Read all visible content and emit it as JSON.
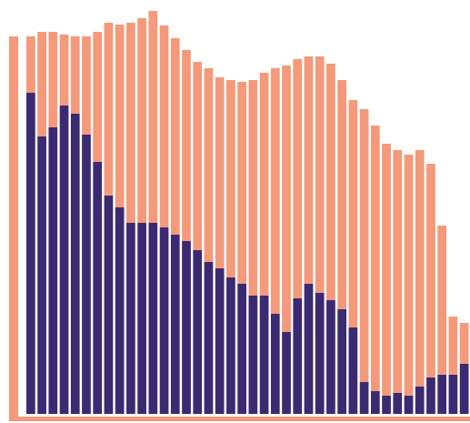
{
  "chart_data": {
    "type": "bar",
    "stacked": true,
    "categories": [
      null,
      null,
      null,
      null,
      null,
      null,
      null,
      null,
      null,
      null,
      null,
      null,
      null,
      null,
      null,
      null,
      null,
      null,
      null,
      null,
      null,
      null,
      null,
      null,
      null,
      null,
      null,
      null,
      null,
      null,
      null,
      null,
      null,
      null,
      null,
      null,
      null,
      null,
      null,
      null
    ],
    "series": [
      {
        "color": "#3b2a72",
        "values": [
          353,
          305,
          315,
          339,
          330,
          307,
          277,
          240,
          227,
          210,
          210,
          210,
          205,
          197,
          190,
          180,
          167,
          160,
          150,
          143,
          130,
          130,
          110,
          90,
          127,
          143,
          133,
          125,
          115,
          95,
          35,
          25,
          20,
          23,
          20,
          30,
          40,
          43,
          43,
          55
        ]
      },
      {
        "color": "#f4997a",
        "values": [
          62,
          115,
          105,
          78,
          85,
          108,
          143,
          190,
          201,
          220,
          225,
          233,
          222,
          216,
          210,
          207,
          213,
          210,
          217,
          222,
          237,
          245,
          270,
          293,
          263,
          250,
          260,
          260,
          252,
          250,
          300,
          292,
          277,
          267,
          265,
          260,
          235,
          164,
          64,
          45
        ]
      }
    ],
    "ylim": [
      0,
      455
    ]
  }
}
